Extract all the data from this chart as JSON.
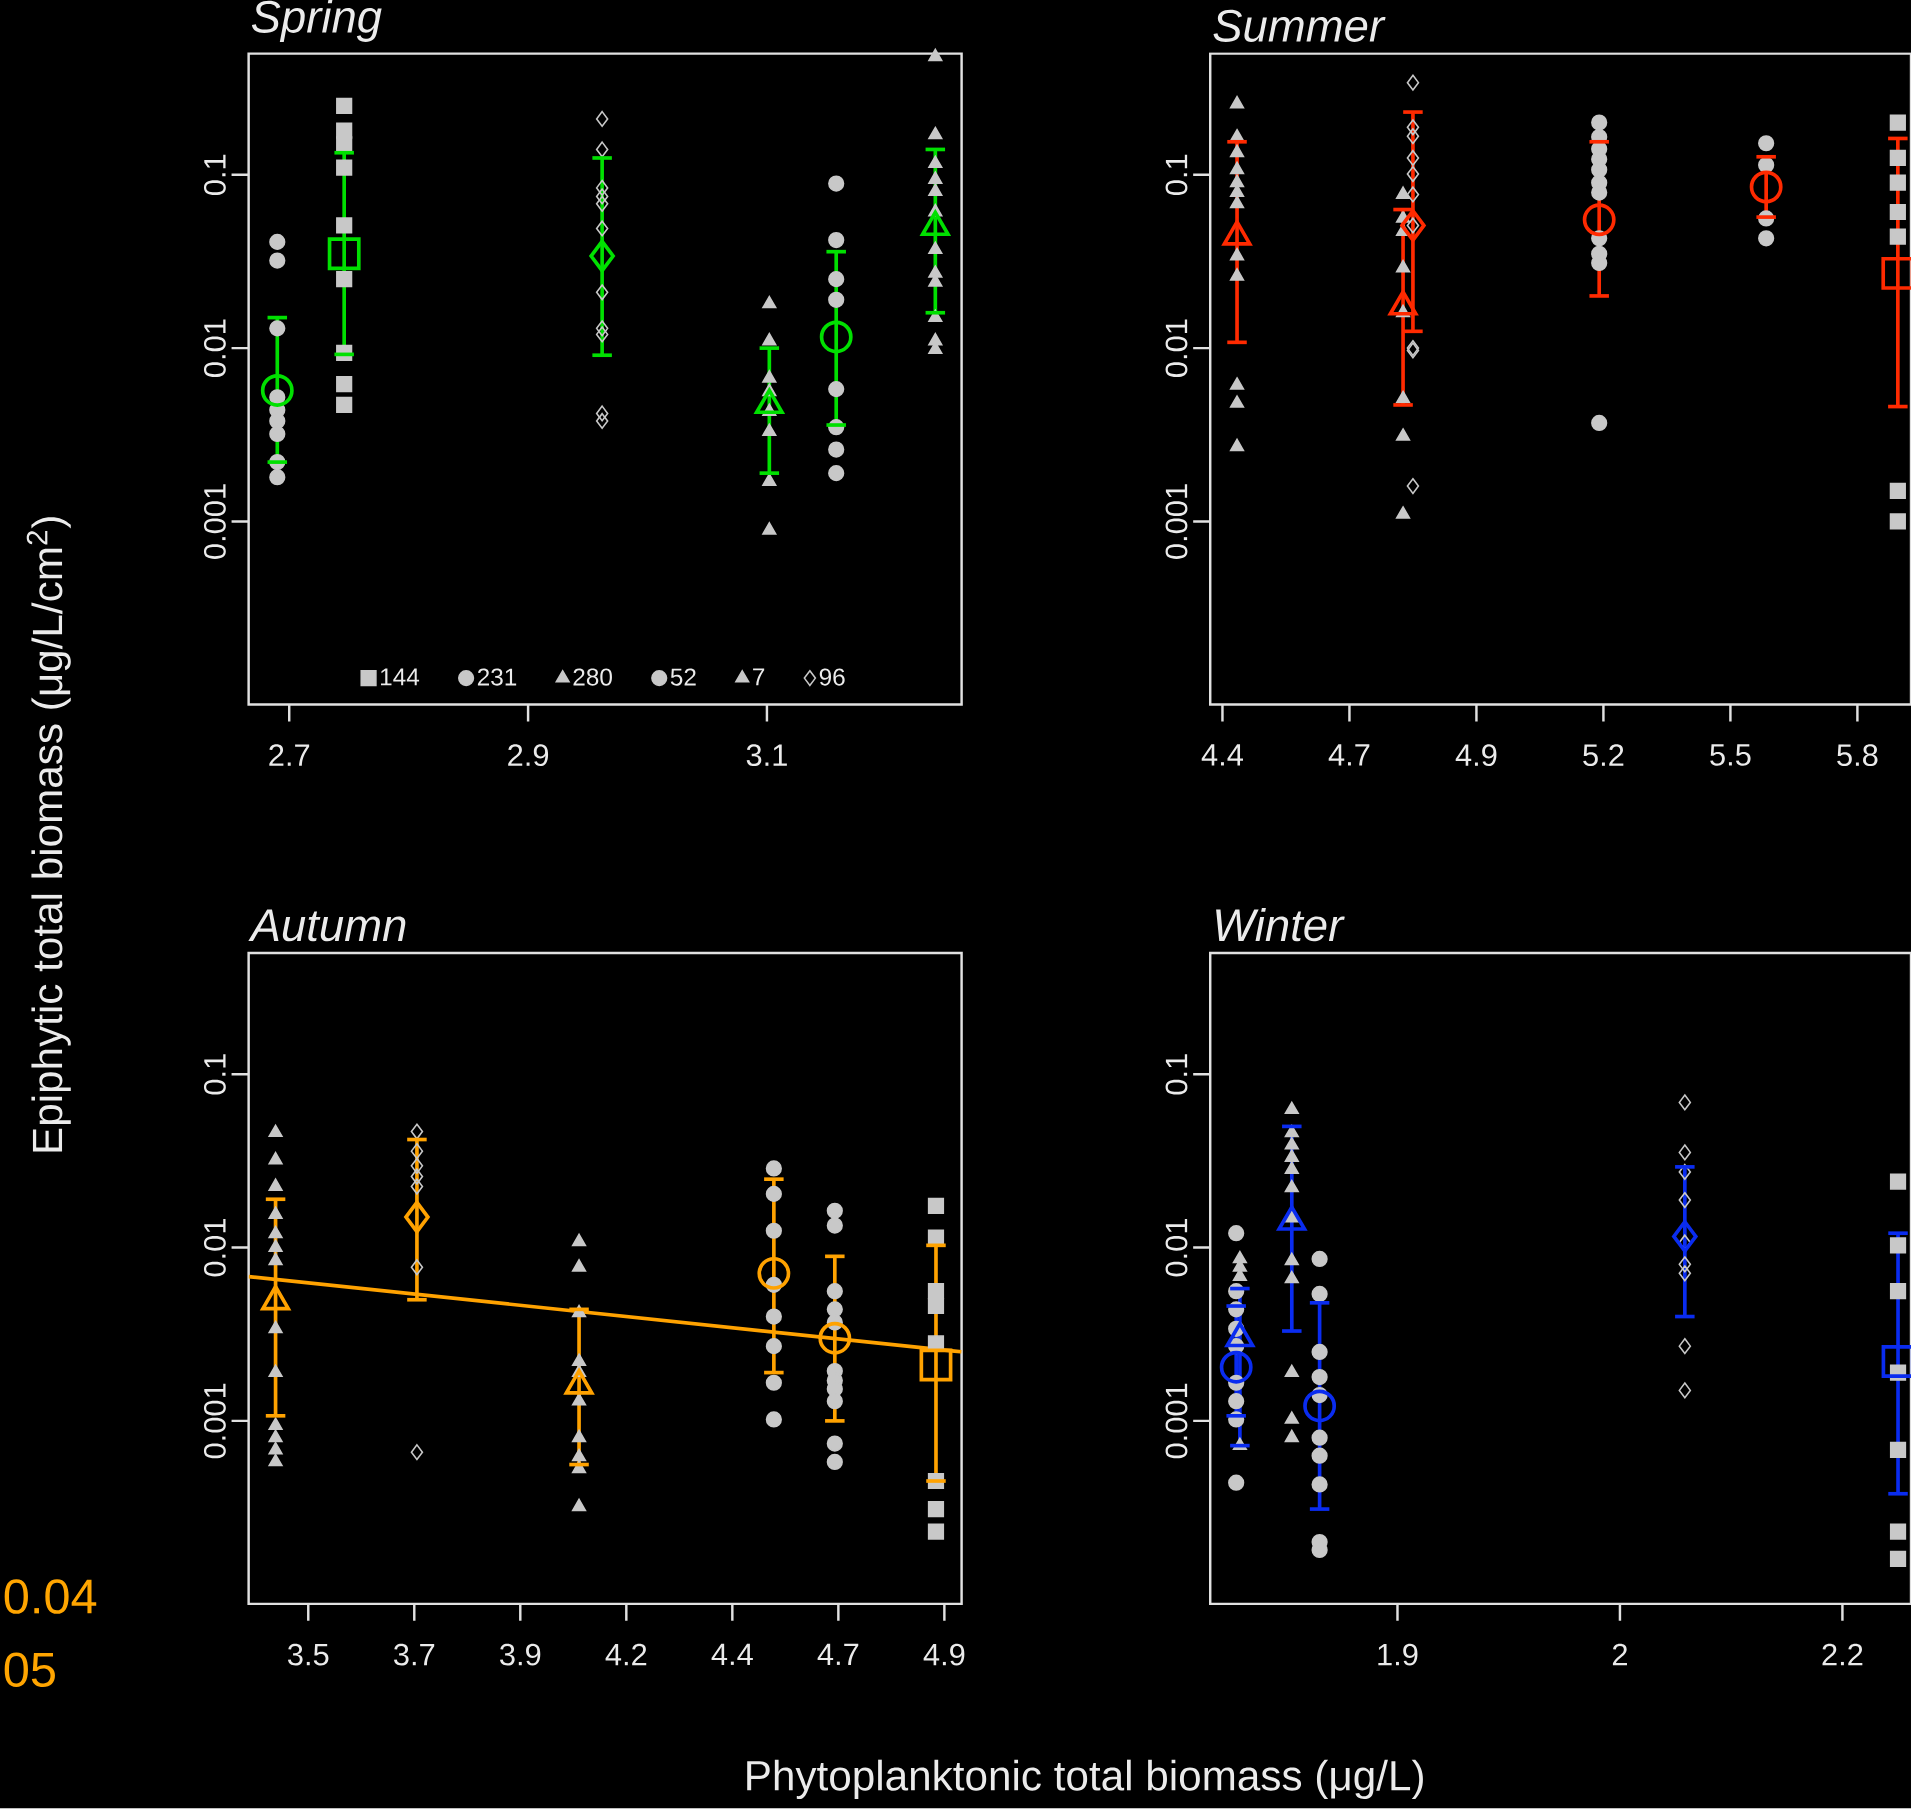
{
  "chart_data": [
    {
      "type": "scatter",
      "title": "Spring",
      "ylabel": "Epiphytic total biomass (μg/L/cm$^{2}$)",
      "log": "y",
      "legend": "bottom",
      "xlim": [
        2.666,
        3.263
      ],
      "xticks": [
        2.7,
        2.9,
        3.1
      ],
      "ylim": [
        8.8e-05,
        0.5
      ],
      "yticks": [
        0.001,
        0.01,
        0.1
      ],
      "series": [
        {
          "name": "144",
          "color": "#c8c8c8",
          "marker": "square",
          "x": [
            2.746,
            2.746,
            2.746,
            2.746,
            2.746,
            2.746,
            2.746,
            2.746,
            2.746
          ],
          "values": [
            0.25,
            0.18,
            0.15,
            0.11,
            0.051,
            0.025,
            0.0094,
            0.0062,
            0.0047
          ]
        },
        {
          "name": "231",
          "color": "#c8c8c8",
          "marker": "circle",
          "x": [
            3.158,
            3.158,
            3.158,
            3.158,
            3.158,
            3.158,
            3.158,
            3.158
          ],
          "values": [
            0.089,
            0.042,
            0.025,
            0.019,
            0.0058,
            0.0035,
            0.0026,
            0.0019
          ]
        },
        {
          "name": "280",
          "color": "#c8c8c8",
          "marker": "triangle",
          "x": [
            3.102,
            3.102,
            3.102,
            3.102,
            3.102,
            3.102,
            3.102,
            3.102
          ],
          "values": [
            0.018,
            0.011,
            0.0067,
            0.0056,
            0.0043,
            0.0033,
            0.0017,
            0.00089
          ]
        },
        {
          "name": "52",
          "color": "#c8c8c8",
          "marker": "circle",
          "x": [
            2.69,
            2.69,
            2.69,
            2.69,
            2.69,
            2.69,
            2.69,
            2.69,
            2.69
          ],
          "values": [
            0.041,
            0.032,
            0.013,
            0.0052,
            0.0044,
            0.0038,
            0.0032,
            0.0022,
            0.0018
          ]
        },
        {
          "name": "7",
          "color": "#c8c8c8",
          "marker": "triangle",
          "x": [
            3.241,
            3.241,
            3.241,
            3.241,
            3.241,
            3.241,
            3.241,
            3.241,
            3.241,
            3.241,
            3.241,
            3.241
          ],
          "values": [
            0.48,
            0.17,
            0.116,
            0.094,
            0.08,
            0.061,
            0.037,
            0.027,
            0.024,
            0.015,
            0.011,
            0.0098
          ]
        },
        {
          "name": "96",
          "color": "#c8c8c8",
          "marker": "diamond",
          "x": [
            2.962,
            2.962,
            2.962,
            2.962,
            2.962,
            2.962,
            2.962,
            2.962,
            2.962,
            2.962,
            2.962
          ],
          "values": [
            0.21,
            0.14,
            0.084,
            0.075,
            0.068,
            0.049,
            0.021,
            0.013,
            0.012,
            0.0042,
            0.0038
          ]
        },
        {
          "color": "#00e000",
          "marker": "square",
          "x": [
            2.746
          ],
          "values": [
            0.035
          ],
          "errors": [
            [
              0.0092,
              0.134
            ]
          ]
        },
        {
          "color": "#00e000",
          "marker": "circle",
          "x": [
            3.158
          ],
          "values": [
            0.0116
          ],
          "errors": [
            [
              0.0036,
              0.036
            ]
          ]
        },
        {
          "color": "#00e000",
          "marker": "triangle",
          "x": [
            3.102
          ],
          "values": [
            0.0047
          ],
          "errors": [
            [
              0.0019,
              0.01
            ]
          ]
        },
        {
          "color": "#00e000",
          "marker": "circle",
          "x": [
            2.69
          ],
          "values": [
            0.0057
          ],
          "errors": [
            [
              0.0022,
              0.015
            ]
          ]
        },
        {
          "color": "#00e000",
          "marker": "triangle",
          "x": [
            3.241
          ],
          "values": [
            0.05
          ],
          "errors": [
            [
              0.016,
              0.14
            ]
          ]
        },
        {
          "color": "#00e000",
          "marker": "diamond",
          "x": [
            2.962
          ],
          "values": [
            0.034
          ],
          "errors": [
            [
              0.0091,
              0.125
            ]
          ]
        }
      ]
    },
    {
      "type": "scatter",
      "title": "Summer",
      "log": "y",
      "xlim": [
        4.374,
        5.864
      ],
      "xticks": [
        {
          "value": 4.4,
          "label": "4.4"
        },
        {
          "value": 4.67,
          "label": "4.7"
        },
        {
          "value": 4.94,
          "label": "4.9"
        },
        {
          "value": 5.21,
          "label": "5.2"
        },
        {
          "value": 5.48,
          "label": "5.5"
        },
        {
          "value": 5.75,
          "label": "5.8"
        }
      ],
      "ylim": [
        8.8e-05,
        0.5
      ],
      "yticks": [
        0.001,
        0.01,
        0.1
      ],
      "series": [
        {
          "color": "#c8c8c8",
          "marker": "square",
          "x": [
            5.836,
            5.836,
            5.836,
            5.836,
            5.836,
            5.836,
            5.836
          ],
          "values": [
            0.2,
            0.125,
            0.09,
            0.061,
            0.044,
            0.0015,
            0.001
          ]
        },
        {
          "color": "#c8c8c8",
          "marker": "circle",
          "x": [
            5.556,
            5.556,
            5.556,
            5.556
          ],
          "values": [
            0.152,
            0.114,
            0.056,
            0.043
          ]
        },
        {
          "color": "#c8c8c8",
          "marker": "triangle",
          "x": [
            4.784,
            4.784,
            4.784,
            4.784,
            4.784,
            4.784,
            4.784,
            4.784
          ],
          "values": [
            0.077,
            0.056,
            0.047,
            0.029,
            0.016,
            0.0051,
            0.0031,
            0.0011
          ]
        },
        {
          "color": "#c8c8c8",
          "marker": "circle",
          "x": [
            5.201,
            5.201,
            5.201,
            5.201,
            5.201,
            5.201,
            5.201,
            5.201,
            5.201,
            5.201,
            5.201
          ],
          "values": [
            0.2,
            0.165,
            0.141,
            0.123,
            0.107,
            0.09,
            0.079,
            0.043,
            0.035,
            0.031,
            0.0037
          ]
        },
        {
          "color": "#c8c8c8",
          "marker": "triangle",
          "x": [
            4.431,
            4.431,
            4.431,
            4.431,
            4.431,
            4.431,
            4.431,
            4.431,
            4.431,
            4.431,
            4.431,
            4.431
          ],
          "values": [
            0.256,
            0.165,
            0.134,
            0.107,
            0.09,
            0.079,
            0.068,
            0.034,
            0.026,
            0.0061,
            0.0048,
            0.0027
          ]
        },
        {
          "color": "#c8c8c8",
          "marker": "diamond",
          "x": [
            4.805,
            4.805,
            4.805,
            4.805,
            4.805,
            4.805,
            4.805,
            4.805,
            4.805,
            4.805
          ],
          "values": [
            0.34,
            0.188,
            0.167,
            0.125,
            0.101,
            0.077,
            0.051,
            0.01,
            0.0097,
            0.0016
          ]
        },
        {
          "color": "#ff2a00",
          "marker": "square",
          "x": [
            5.836
          ],
          "values": [
            0.027
          ],
          "errors": [
            [
              0.0046,
              0.162
            ]
          ]
        },
        {
          "color": "#ff2a00",
          "marker": "circle",
          "x": [
            5.556
          ],
          "values": [
            0.085
          ],
          "errors": [
            [
              0.057,
              0.127
            ]
          ]
        },
        {
          "color": "#ff2a00",
          "marker": "triangle",
          "x": [
            4.784
          ],
          "values": [
            0.0174
          ],
          "errors": [
            [
              0.0047,
              0.063
            ]
          ]
        },
        {
          "color": "#ff2a00",
          "marker": "circle",
          "x": [
            5.201
          ],
          "values": [
            0.055
          ],
          "errors": [
            [
              0.02,
              0.155
            ]
          ]
        },
        {
          "color": "#ff2a00",
          "marker": "triangle",
          "x": [
            4.431
          ],
          "values": [
            0.044
          ],
          "errors": [
            [
              0.0108,
              0.155
            ]
          ]
        },
        {
          "color": "#ff2a00",
          "marker": "diamond",
          "x": [
            4.805
          ],
          "values": [
            0.051
          ],
          "errors": [
            [
              0.0125,
              0.23
            ]
          ]
        }
      ]
    },
    {
      "type": "scatter",
      "title": "Autumn",
      "xlabel": "Phytoplanktonic total biomass (μg/L)",
      "log": "y",
      "annotations": [
        "0.04",
        "05"
      ],
      "xlim": [
        3.325,
        4.939
      ],
      "xticks": [
        {
          "value": 3.46,
          "label": "3.5"
        },
        {
          "value": 3.7,
          "label": "3.7"
        },
        {
          "value": 3.94,
          "label": "3.9"
        },
        {
          "value": 4.18,
          "label": "4.2"
        },
        {
          "value": 4.42,
          "label": "4.4"
        },
        {
          "value": 4.66,
          "label": "4.7"
        },
        {
          "value": 4.9,
          "label": "4.9"
        }
      ],
      "ylim": [
        8.8e-05,
        0.5
      ],
      "yticks": [
        0.001,
        0.01,
        0.1
      ],
      "series": [
        {
          "color": "#c8c8c8",
          "marker": "square",
          "x": [
            4.881,
            4.881,
            4.881,
            4.881,
            4.881,
            4.881,
            4.881,
            4.881
          ],
          "values": [
            0.0174,
            0.0114,
            0.0056,
            0.0046,
            0.0028,
            0.00045,
            0.00031,
            0.00023
          ]
        },
        {
          "color": "#c8c8c8",
          "marker": "circle",
          "x": [
            4.514,
            4.514,
            4.514,
            4.514,
            4.514,
            4.514,
            4.514,
            4.514
          ],
          "values": [
            0.0286,
            0.0204,
            0.0125,
            0.0061,
            0.004,
            0.0027,
            0.00166,
            0.00102
          ]
        },
        {
          "color": "#c8c8c8",
          "marker": "triangle",
          "x": [
            4.073,
            4.073,
            4.073,
            4.073,
            4.073,
            4.073,
            4.073,
            4.073,
            4.073,
            4.073
          ],
          "values": [
            0.0108,
            0.0077,
            0.0042,
            0.0022,
            0.0019,
            0.0013,
            0.0008,
            0.00062,
            0.00053,
            0.00032
          ]
        },
        {
          "color": "#c8c8c8",
          "marker": "circle",
          "x": [
            4.652,
            4.652,
            4.652,
            4.652,
            4.652,
            4.652,
            4.652,
            4.652,
            4.652,
            4.652,
            4.652
          ],
          "values": [
            0.0163,
            0.0134,
            0.0056,
            0.0044,
            0.0037,
            0.00194,
            0.00171,
            0.00153,
            0.0013,
            0.00074,
            0.00058
          ]
        },
        {
          "color": "#c8c8c8",
          "marker": "triangle",
          "x": [
            3.386,
            3.386,
            3.386,
            3.386,
            3.386,
            3.386,
            3.386,
            3.386,
            3.386,
            3.386,
            3.386,
            3.386,
            3.386
          ],
          "values": [
            0.046,
            0.032,
            0.0225,
            0.0155,
            0.012,
            0.01,
            0.0084,
            0.0034,
            0.0019,
            0.00094,
            0.0008,
            0.00068,
            0.00058
          ]
        },
        {
          "color": "#c8c8c8",
          "marker": "diamond",
          "x": [
            3.706,
            3.706,
            3.706,
            3.706,
            3.706,
            3.706,
            3.706
          ],
          "values": [
            0.0467,
            0.036,
            0.0296,
            0.0257,
            0.0225,
            0.0077,
            0.00066
          ]
        },
        {
          "type": "line",
          "color": "#ffa200",
          "x": [
            3.325,
            4.939
          ],
          "values": [
            0.0068,
            0.0025
          ]
        },
        {
          "color": "#ffa200",
          "marker": "square",
          "x": [
            4.881
          ],
          "values": [
            0.0021
          ],
          "errors": [
            [
              0.00045,
              0.0103
            ]
          ]
        },
        {
          "color": "#ffa200",
          "marker": "circle",
          "x": [
            4.514
          ],
          "values": [
            0.0071
          ],
          "errors": [
            [
              0.0019,
              0.0248
            ]
          ]
        },
        {
          "color": "#ffa200",
          "marker": "triangle",
          "x": [
            4.073
          ],
          "values": [
            0.0016
          ],
          "errors": [
            [
              0.00056,
              0.0044
            ]
          ]
        },
        {
          "color": "#ffa200",
          "marker": "circle",
          "x": [
            4.652
          ],
          "values": [
            0.003
          ],
          "errors": [
            [
              0.001,
              0.0089
            ]
          ]
        },
        {
          "color": "#ffa200",
          "marker": "triangle",
          "x": [
            3.386
          ],
          "values": [
            0.0049
          ],
          "errors": [
            [
              0.00107,
              0.019
            ]
          ]
        },
        {
          "color": "#ffa200",
          "marker": "diamond",
          "x": [
            3.706
          ],
          "values": [
            0.015
          ],
          "errors": [
            [
              0.005,
              0.042
            ]
          ]
        }
      ]
    },
    {
      "type": "scatter",
      "title": "Winter",
      "log": "y",
      "xlim": [
        1.819,
        2.197
      ],
      "xticks": [
        {
          "value": 1.92,
          "label": "1.9"
        },
        {
          "value": 2.04,
          "label": "2"
        },
        {
          "value": 2.16,
          "label": "2.2"
        }
      ],
      "ylim": [
        8.8e-05,
        0.5
      ],
      "yticks": [
        0.001,
        0.01,
        0.1
      ],
      "series": [
        {
          "color": "#c8c8c8",
          "marker": "square",
          "x": [
            2.19,
            2.19,
            2.19,
            2.19,
            2.19,
            2.19,
            2.19
          ],
          "values": [
            0.024,
            0.0103,
            0.0056,
            0.0019,
            0.00068,
            0.00023,
            0.00016
          ]
        },
        {
          "color": "#c8c8c8",
          "marker": "circle",
          "x": [
            1.878,
            1.878,
            1.878,
            1.878,
            1.878,
            1.878,
            1.878,
            1.878,
            1.878,
            1.878
          ],
          "values": [
            0.0086,
            0.0054,
            0.0025,
            0.00179,
            0.00141,
            0.0008,
            0.00063,
            0.00043,
            0.0002,
            0.00018
          ]
        },
        {
          "color": "#c8c8c8",
          "marker": "triangle",
          "x": [
            1.835,
            1.835,
            1.835,
            1.835
          ],
          "values": [
            0.0086,
            0.0077,
            0.0068,
            0.00072
          ]
        },
        {
          "color": "#c8c8c8",
          "marker": "circle",
          "x": [
            1.833,
            1.833,
            1.833,
            1.833,
            1.833,
            1.833,
            1.833,
            1.833,
            1.833
          ],
          "values": [
            0.0121,
            0.0056,
            0.0044,
            0.0034,
            0.0027,
            0.00166,
            0.0013,
            0.00102,
            0.00044
          ]
        },
        {
          "color": "#c8c8c8",
          "marker": "triangle",
          "x": [
            1.863,
            1.863,
            1.863,
            1.863,
            1.863,
            1.863,
            1.863,
            1.863,
            1.863,
            1.863,
            1.863,
            1.863
          ],
          "values": [
            0.0625,
            0.0459,
            0.039,
            0.0331,
            0.0282,
            0.0221,
            0.0148,
            0.0084,
            0.0066,
            0.0019,
            0.00102,
            0.0008
          ]
        },
        {
          "color": "#c8c8c8",
          "marker": "diamond",
          "x": [
            2.075,
            2.075,
            2.075,
            2.075,
            2.075,
            2.075,
            2.075,
            2.075,
            2.075
          ],
          "values": [
            0.0688,
            0.0354,
            0.0273,
            0.0188,
            0.0107,
            0.008,
            0.0071,
            0.0027,
            0.0015
          ]
        },
        {
          "color": "#0a2cf0",
          "marker": "square",
          "x": [
            2.19
          ],
          "values": [
            0.0022
          ],
          "errors": [
            [
              0.00038,
              0.0121
            ]
          ]
        },
        {
          "color": "#0a2cf0",
          "marker": "circle",
          "x": [
            1.878
          ],
          "values": [
            0.00122
          ],
          "errors": [
            [
              0.00031,
              0.0048
            ]
          ]
        },
        {
          "color": "#0a2cf0",
          "marker": "triangle",
          "x": [
            1.835
          ],
          "values": [
            0.003
          ],
          "errors": [
            [
              0.00072,
              0.0058
            ]
          ]
        },
        {
          "color": "#0a2cf0",
          "marker": "circle",
          "x": [
            1.833
          ],
          "values": [
            0.00204
          ],
          "errors": [
            [
              0.00107,
              0.0046
            ]
          ]
        },
        {
          "color": "#0a2cf0",
          "marker": "triangle",
          "x": [
            1.863
          ],
          "values": [
            0.0141
          ],
          "errors": [
            [
              0.0033,
              0.05
            ]
          ]
        },
        {
          "color": "#0a2cf0",
          "marker": "diamond",
          "x": [
            2.075
          ],
          "values": [
            0.0116
          ],
          "errors": [
            [
              0.004,
              0.0292
            ]
          ]
        }
      ]
    }
  ]
}
